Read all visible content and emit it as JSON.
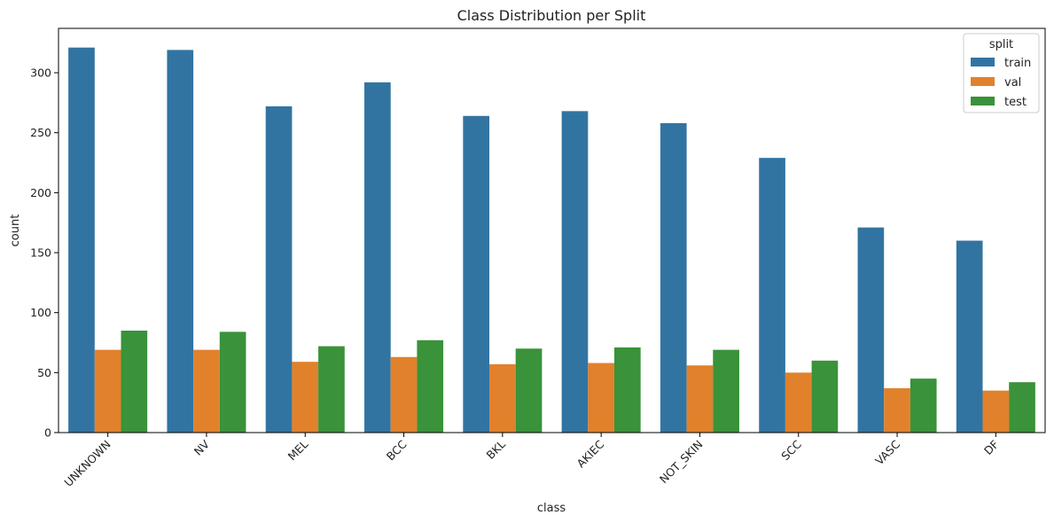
{
  "chart_data": {
    "type": "bar",
    "title": "Class Distribution per Split",
    "xlabel": "class",
    "ylabel": "count",
    "categories": [
      "UNKNOWN",
      "NV",
      "MEL",
      "BCC",
      "BKL",
      "AKIEC",
      "NOT_SKIN",
      "SCC",
      "VASC",
      "DF"
    ],
    "series": [
      {
        "name": "train",
        "color": "#3274a1",
        "values": [
          321,
          319,
          272,
          292,
          264,
          268,
          258,
          229,
          171,
          160
        ]
      },
      {
        "name": "val",
        "color": "#e1812c",
        "values": [
          69,
          69,
          59,
          63,
          57,
          58,
          56,
          50,
          37,
          35
        ]
      },
      {
        "name": "test",
        "color": "#3a923a",
        "values": [
          85,
          84,
          72,
          77,
          70,
          71,
          69,
          60,
          45,
          42
        ]
      }
    ],
    "ylim": [
      0,
      337
    ],
    "yticks": [
      0,
      50,
      100,
      150,
      200,
      250,
      300
    ],
    "legend": {
      "title": "split",
      "position": "top-right"
    },
    "grid": false
  }
}
